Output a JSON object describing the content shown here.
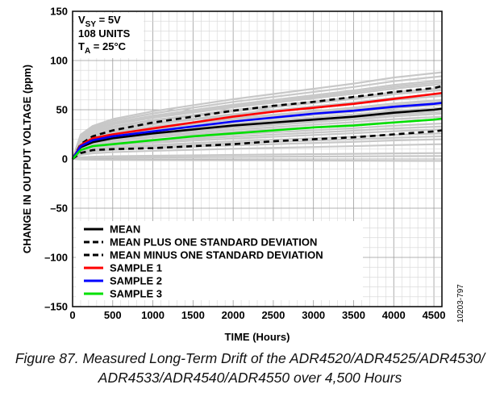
{
  "chart_data": {
    "type": "line",
    "xlabel": "TIME (Hours)",
    "ylabel": "CHANGE IN OUTPUT VOLTAGE (ppm)",
    "xlim": [
      0,
      4600
    ],
    "ylim": [
      -150,
      150
    ],
    "xticks": [
      0,
      500,
      1000,
      1500,
      2000,
      2500,
      3000,
      3500,
      4000,
      4500
    ],
    "yticks": [
      -150,
      -100,
      -50,
      0,
      50,
      100,
      150
    ],
    "grid": true,
    "legend_position": "bottom-left",
    "conditions": {
      "line1_main": "V",
      "line1_sub": "SY",
      "line1_rest": " = 5V",
      "line2": "108 UNITS",
      "line3_main": "T",
      "line3_sub": "A",
      "line3_rest": " = 25°C"
    },
    "series": [
      {
        "name": "MEAN",
        "color": "#000000",
        "style": "solid",
        "x": [
          0,
          100,
          250,
          500,
          1000,
          1500,
          2000,
          2500,
          3000,
          3500,
          4000,
          4500,
          4600
        ],
        "y": [
          0,
          12,
          17,
          21,
          26,
          30,
          34,
          37,
          40,
          43,
          47,
          50,
          51
        ]
      },
      {
        "name": "MEAN PLUS ONE STANDARD DEVIATION",
        "color": "#000000",
        "style": "dashed",
        "x": [
          0,
          100,
          250,
          500,
          1000,
          1500,
          2000,
          2500,
          3000,
          3500,
          4000,
          4500,
          4600
        ],
        "y": [
          0,
          15,
          23,
          29,
          37,
          43,
          49,
          54,
          58,
          63,
          68,
          72,
          74
        ]
      },
      {
        "name": "MEAN MINUS ONE STANDARD DEVIATION",
        "color": "#000000",
        "style": "dashed",
        "x": [
          0,
          100,
          250,
          500,
          1000,
          1500,
          2000,
          2500,
          3000,
          3500,
          4000,
          4500,
          4600
        ],
        "y": [
          0,
          6,
          9,
          10,
          11,
          13,
          15,
          18,
          20,
          22,
          25,
          28,
          29
        ]
      },
      {
        "name": "SAMPLE 1",
        "color": "#ff0000",
        "style": "solid",
        "x": [
          0,
          100,
          250,
          500,
          1000,
          1500,
          2000,
          2500,
          3000,
          3500,
          4000,
          4500,
          4600
        ],
        "y": [
          0,
          14,
          21,
          25,
          31,
          37,
          43,
          48,
          52,
          56,
          61,
          66,
          67
        ]
      },
      {
        "name": "SAMPLE 2",
        "color": "#0000ff",
        "style": "solid",
        "x": [
          0,
          100,
          250,
          500,
          1000,
          1500,
          2000,
          2500,
          3000,
          3500,
          4000,
          4500,
          4600
        ],
        "y": [
          0,
          13,
          19,
          23,
          28,
          33,
          38,
          42,
          46,
          49,
          53,
          56,
          57
        ]
      },
      {
        "name": "SAMPLE 3",
        "color": "#00e000",
        "style": "solid",
        "x": [
          0,
          100,
          250,
          500,
          1000,
          1500,
          2000,
          2500,
          3000,
          3500,
          4000,
          4500,
          4600
        ],
        "y": [
          0,
          9,
          13,
          15,
          19,
          23,
          26,
          29,
          32,
          34,
          37,
          40,
          41
        ]
      }
    ],
    "background_units": {
      "color": "#c8c8c8",
      "count_drawn": 24,
      "final_values": [
        88,
        84,
        80,
        78,
        76,
        72,
        70,
        66,
        64,
        60,
        58,
        55,
        52,
        48,
        46,
        43,
        40,
        36,
        33,
        30,
        26,
        23,
        20,
        15
      ]
    }
  },
  "figure_code": "10203-797",
  "caption": {
    "line1": "Figure 87. Measured Long-Term Drift of the ADR4520/ADR4525/ADR4530/",
    "line2": "ADR4533/ADR4540/ADR4550 over 4,500 Hours"
  }
}
